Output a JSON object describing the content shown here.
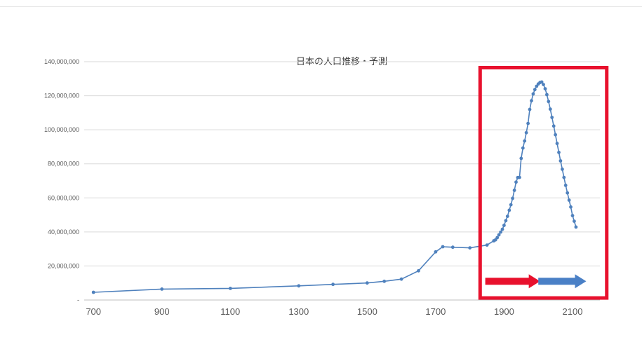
{
  "chart_data": {
    "type": "line",
    "title": "日本の人口推移・予測",
    "x": [
      700,
      900,
      1100,
      1300,
      1400,
      1500,
      1550,
      1600,
      1650,
      1700,
      1721,
      1750,
      1800,
      1850,
      1870,
      1875,
      1880,
      1885,
      1890,
      1895,
      1900,
      1905,
      1910,
      1915,
      1920,
      1925,
      1930,
      1935,
      1940,
      1945,
      1950,
      1955,
      1960,
      1965,
      1970,
      1975,
      1980,
      1985,
      1990,
      1995,
      2000,
      2005,
      2010,
      2015,
      2020,
      2025,
      2030,
      2035,
      2040,
      2045,
      2050,
      2055,
      2060,
      2065,
      2070,
      2075,
      2080,
      2085,
      2090,
      2095,
      2100,
      2105,
      2110
    ],
    "values": [
      4512000,
      6441000,
      6837000,
      8300000,
      9200000,
      10000000,
      11000000,
      12273000,
      17180000,
      28290000,
      31278000,
      31011000,
      30655000,
      32280000,
      34806000,
      35316000,
      36649000,
      38313000,
      39902000,
      41557000,
      43847000,
      46620000,
      49184000,
      52752000,
      55963000,
      59737000,
      64450000,
      69254000,
      71933000,
      71998000,
      83200000,
      89276000,
      93419000,
      98275000,
      103720000,
      111940000,
      117060000,
      121049000,
      123611000,
      125570000,
      126926000,
      127768000,
      128057000,
      126597000,
      124100000,
      120659000,
      116618000,
      112124000,
      107276000,
      102210000,
      97076000,
      91933000,
      86737000,
      81735000,
      76818000,
      72008000,
      67351000,
      62898000,
      58674000,
      54653000,
      49591000,
      46300000,
      42860000
    ],
    "xlim": [
      673,
      2180
    ],
    "ylim": [
      0,
      140000000
    ],
    "x_ticks": [
      700,
      900,
      1100,
      1300,
      1500,
      1700,
      1900,
      2100
    ],
    "x_tick_labels": [
      "700",
      "900",
      "1100",
      "1300",
      "1500",
      "1700",
      "1900",
      "2100"
    ],
    "y_ticks": [
      0,
      20000000,
      40000000,
      60000000,
      80000000,
      100000000,
      120000000,
      140000000
    ],
    "y_tick_labels": [
      "-",
      "20,000,000",
      "40,000,000",
      "60,000,000",
      "80,000,000",
      "100,000,000",
      "120,000,000",
      "140,000,000"
    ],
    "grid": "horizontal",
    "legend": "none",
    "line_color": "#4f81bd",
    "grid_color": "#d9d9d9",
    "axis_color": "#bfbfbf",
    "tick_color": "#595959",
    "title_color": "#404040",
    "annotations": {
      "highlight_box": {
        "x1": 1830,
        "x2": 2200,
        "y1": 1200000,
        "y2": 136500000,
        "color": "#e8112d",
        "stroke_width": 5
      },
      "arrows": [
        {
          "name": "red-arrow",
          "x1": 1845,
          "x2": 2005,
          "y": 11000000,
          "color": "#e8112d"
        },
        {
          "name": "blue-arrow",
          "x1": 2000,
          "x2": 2140,
          "y": 11000000,
          "color": "#4a80c6"
        }
      ]
    }
  }
}
